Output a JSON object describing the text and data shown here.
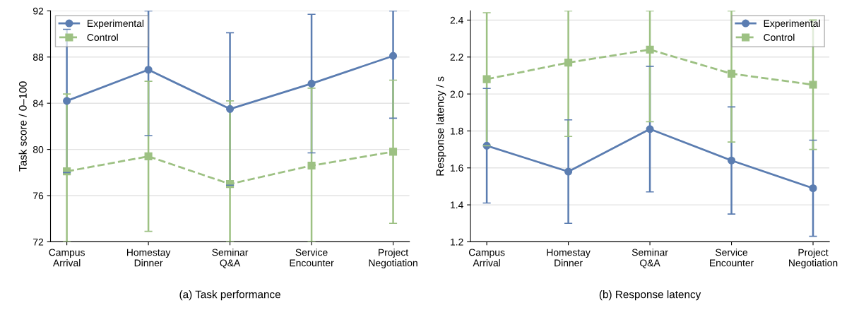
{
  "chart_data": [
    {
      "type": "line",
      "title": "(a) Task performance",
      "ylabel": "Task score / 0–100",
      "categories": [
        "Campus\nArrival",
        "Homestay\nDinner",
        "Seminar\nQ&A",
        "Service\nEncounter",
        "Project\nNegotiation"
      ],
      "series": [
        {
          "name": "Experimental",
          "color": "#5b7db1",
          "marker": "circle",
          "line_style": "solid",
          "values": [
            84.2,
            86.9,
            83.5,
            85.7,
            88.1
          ],
          "errors": [
            6.2,
            [
              81.2,
              92
            ],
            6.6,
            6.0,
            [
              82.7,
              92
            ]
          ]
        },
        {
          "name": "Control",
          "color": "#9dc183",
          "marker": "square",
          "line_style": "dashed",
          "values": [
            78.1,
            79.4,
            77.0,
            78.6,
            79.8
          ],
          "errors": [
            [
              72,
              84.8
            ],
            6.5,
            [
              72,
              84.2
            ],
            [
              72,
              85.3
            ],
            6.2
          ]
        }
      ],
      "ylim": [
        72,
        92
      ],
      "yticks": [
        72,
        76,
        80,
        84,
        88,
        92
      ],
      "grid": "y",
      "legend": "top left"
    },
    {
      "type": "line",
      "title": "(b) Response latency",
      "ylabel": "Response latency / s",
      "categories": [
        "Campus\nArrival",
        "Homestay\nDinner",
        "Seminar\nQ&A",
        "Service\nEncounter",
        "Project\nNegotiation"
      ],
      "series": [
        {
          "name": "Experimental",
          "color": "#5b7db1",
          "marker": "circle",
          "line_style": "solid",
          "values": [
            1.72,
            1.58,
            1.81,
            1.64,
            1.49
          ],
          "errors": [
            0.31,
            0.28,
            0.34,
            0.29,
            0.26
          ]
        },
        {
          "name": "Control",
          "color": "#9dc183",
          "marker": "square",
          "line_style": "dashed",
          "values": [
            2.08,
            2.17,
            2.24,
            2.11,
            2.05
          ],
          "errors": [
            0.36,
            [
              1.77,
              2.45
            ],
            [
              1.85,
              2.45
            ],
            [
              1.74,
              2.45
            ],
            0.35
          ]
        }
      ],
      "ylim": [
        1.2,
        2.45
      ],
      "yticks": [
        {
          "value": 1.2,
          "label": "1.2"
        },
        {
          "value": 1.4,
          "label": "1.4"
        },
        {
          "value": 1.6,
          "label": "1.6"
        },
        {
          "value": 1.8,
          "label": "1.8"
        },
        {
          "value": 2.0,
          "label": "2.0"
        },
        {
          "value": 2.2,
          "label": "2.2"
        },
        {
          "value": 2.4,
          "label": "2.4"
        }
      ],
      "grid": "y",
      "legend": "top right"
    }
  ]
}
